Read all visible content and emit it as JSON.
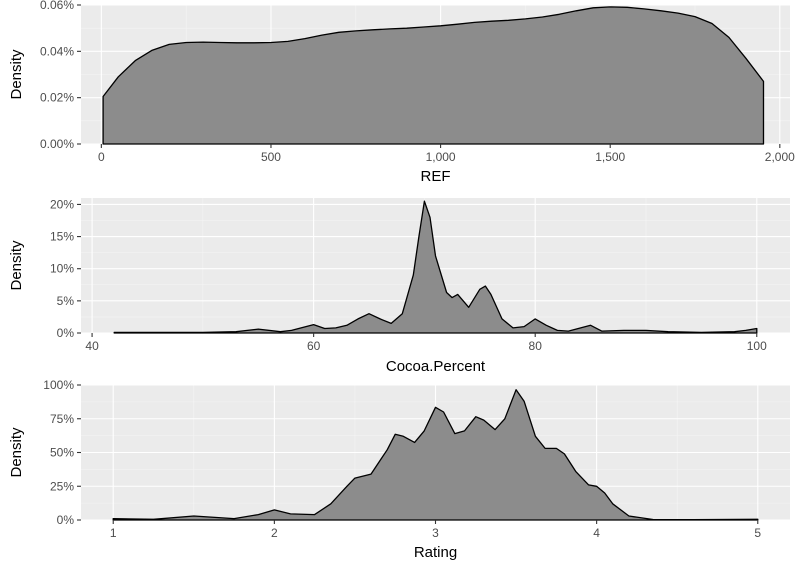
{
  "chart_data": [
    {
      "type": "area",
      "ylabel": "Density",
      "xlabel": "REF",
      "xlim": [
        -60,
        2030
      ],
      "ylim": [
        0,
        0.0006
      ],
      "x_ticks": [
        0,
        500,
        1000,
        1500,
        2000
      ],
      "x_tick_labels": [
        "0",
        "500",
        "1,000",
        "1,500",
        "2,000"
      ],
      "y_ticks": [
        0,
        0.0002,
        0.0004,
        0.0006
      ],
      "y_tick_labels": [
        "0.00%",
        "0.02%",
        "0.04%",
        "0.06%"
      ],
      "grid": true,
      "fill_color": "#8c8c8c",
      "x": [
        5,
        50,
        100,
        150,
        200,
        250,
        300,
        350,
        400,
        450,
        500,
        550,
        600,
        650,
        700,
        750,
        800,
        850,
        900,
        950,
        1000,
        1050,
        1100,
        1150,
        1200,
        1250,
        1300,
        1350,
        1400,
        1450,
        1500,
        1550,
        1600,
        1650,
        1700,
        1750,
        1800,
        1850,
        1900,
        1952
      ],
      "values": [
        0.000205,
        0.00029,
        0.00036,
        0.000405,
        0.00043,
        0.000438,
        0.00044,
        0.000438,
        0.000437,
        0.000437,
        0.000438,
        0.000443,
        0.000455,
        0.00047,
        0.000482,
        0.000488,
        0.000493,
        0.000497,
        0.0005,
        0.000505,
        0.00051,
        0.000517,
        0.000525,
        0.00053,
        0.000534,
        0.00054,
        0.000548,
        0.00056,
        0.000575,
        0.000588,
        0.000592,
        0.00059,
        0.000583,
        0.000575,
        0.000565,
        0.00055,
        0.00052,
        0.00046,
        0.00037,
        0.00027
      ]
    },
    {
      "type": "area",
      "ylabel": "Density",
      "xlabel": "Cocoa.Percent",
      "xlim": [
        39,
        103
      ],
      "ylim": [
        0,
        0.21
      ],
      "x_ticks": [
        40,
        60,
        80,
        100
      ],
      "x_tick_labels": [
        "40",
        "60",
        "80",
        "100"
      ],
      "y_ticks": [
        0,
        0.05,
        0.1,
        0.15,
        0.2
      ],
      "y_tick_labels": [
        "0%",
        "5%",
        "10%",
        "15%",
        "20%"
      ],
      "grid": true,
      "fill_color": "#8c8c8c",
      "x": [
        42,
        50,
        53,
        55,
        57,
        58,
        60,
        61,
        62,
        63,
        64,
        65,
        66,
        67,
        68,
        69,
        69.5,
        70,
        70.5,
        71,
        72,
        72.5,
        73,
        74,
        75,
        75.5,
        76,
        77,
        78,
        79,
        80,
        81,
        82,
        83,
        85,
        86,
        88,
        90,
        92,
        95,
        98,
        99,
        100
      ],
      "values": [
        0.001,
        0.001,
        0.002,
        0.006,
        0.002,
        0.004,
        0.013,
        0.007,
        0.008,
        0.012,
        0.022,
        0.03,
        0.022,
        0.015,
        0.03,
        0.09,
        0.15,
        0.205,
        0.18,
        0.12,
        0.063,
        0.055,
        0.06,
        0.04,
        0.068,
        0.073,
        0.06,
        0.022,
        0.008,
        0.01,
        0.022,
        0.012,
        0.004,
        0.003,
        0.012,
        0.003,
        0.004,
        0.004,
        0.002,
        0.001,
        0.002,
        0.004,
        0.007
      ]
    },
    {
      "type": "area",
      "ylabel": "Density",
      "xlabel": "Rating",
      "xlim": [
        0.8,
        5.2
      ],
      "ylim": [
        0,
        1.0
      ],
      "x_ticks": [
        1,
        2,
        3,
        4,
        5
      ],
      "x_tick_labels": [
        "1",
        "2",
        "3",
        "4",
        "5"
      ],
      "y_ticks": [
        0,
        0.25,
        0.5,
        0.75,
        1.0
      ],
      "y_tick_labels": [
        "0%",
        "25%",
        "50%",
        "75%",
        "100%"
      ],
      "grid": true,
      "fill_color": "#8c8c8c",
      "x": [
        1,
        1.25,
        1.5,
        1.75,
        1.9,
        2,
        2.1,
        2.25,
        2.35,
        2.45,
        2.5,
        2.6,
        2.7,
        2.75,
        2.8,
        2.87,
        2.93,
        3,
        3.05,
        3.12,
        3.18,
        3.25,
        3.3,
        3.37,
        3.43,
        3.5,
        3.55,
        3.62,
        3.68,
        3.75,
        3.8,
        3.87,
        3.95,
        4,
        4.05,
        4.1,
        4.2,
        4.35,
        4.6,
        5
      ],
      "values": [
        0.01,
        0.005,
        0.03,
        0.01,
        0.04,
        0.075,
        0.045,
        0.04,
        0.12,
        0.25,
        0.31,
        0.34,
        0.52,
        0.635,
        0.62,
        0.575,
        0.66,
        0.835,
        0.8,
        0.64,
        0.66,
        0.765,
        0.74,
        0.67,
        0.75,
        0.965,
        0.88,
        0.62,
        0.53,
        0.53,
        0.49,
        0.36,
        0.26,
        0.25,
        0.2,
        0.12,
        0.03,
        0.004,
        0.002,
        0.005
      ]
    }
  ]
}
